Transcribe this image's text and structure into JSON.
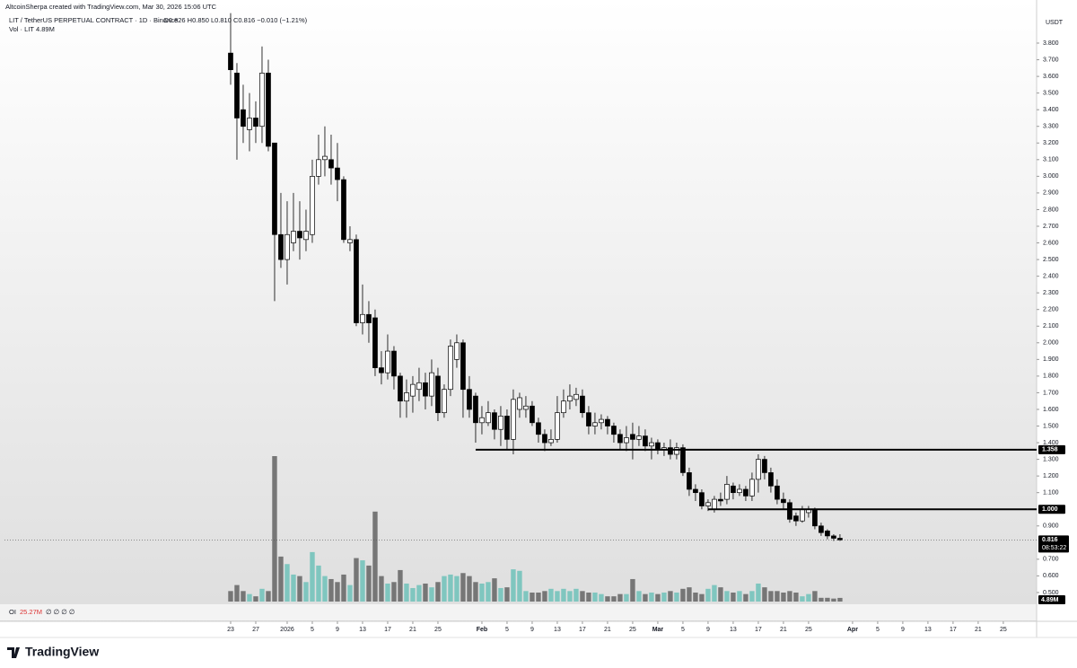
{
  "chart_data": {
    "type": "candlestick",
    "credit": "AltcoinSherpa created with TradingView.com, Mar 30, 2026 15:06 UTC",
    "symbol": "LIT / TetherUS PERPETUAL CONTRACT · 1D · Binance",
    "ohlc_text": "O0.826 H0.850 L0.810 C0.816 −0.010 (−1.21%)",
    "volume_title": "Vol · LIT",
    "volume_text": "4.89M",
    "oi_title": "OI",
    "oi_text": "25.27M",
    "oi_extra": "∅ ∅ ∅ ∅",
    "currency": "USDT",
    "brand": "TradingView",
    "up_color": "#ffffff",
    "down_color": "#000000",
    "wick_color": "#000000",
    "volume_up_color": "#7fc6bf",
    "volume_down_color": "#767676",
    "xlim": [
      -36,
      128.3
    ],
    "ylim": [
      0.435,
      3.978
    ],
    "volume_lim": [
      0,
      200
    ],
    "grid": false,
    "xticks": [
      {
        "value": 0,
        "label": "23"
      },
      {
        "value": 4,
        "label": "27"
      },
      {
        "value": 9,
        "label": "2026"
      },
      {
        "value": 13,
        "label": "5"
      },
      {
        "value": 17,
        "label": "9"
      },
      {
        "value": 21,
        "label": "13"
      },
      {
        "value": 25,
        "label": "17"
      },
      {
        "value": 29,
        "label": "21"
      },
      {
        "value": 33,
        "label": "25"
      },
      {
        "value": 40,
        "label": "Feb"
      },
      {
        "value": 44,
        "label": "5"
      },
      {
        "value": 48,
        "label": "9"
      },
      {
        "value": 52,
        "label": "13"
      },
      {
        "value": 56,
        "label": "17"
      },
      {
        "value": 60,
        "label": "21"
      },
      {
        "value": 64,
        "label": "25"
      },
      {
        "value": 68,
        "label": "Mar"
      },
      {
        "value": 72,
        "label": "5"
      },
      {
        "value": 76,
        "label": "9"
      },
      {
        "value": 80,
        "label": "13"
      },
      {
        "value": 84,
        "label": "17"
      },
      {
        "value": 88,
        "label": "21"
      },
      {
        "value": 92,
        "label": "25"
      },
      {
        "value": 99,
        "label": "Apr"
      },
      {
        "value": 103,
        "label": "5"
      },
      {
        "value": 107,
        "label": "9"
      },
      {
        "value": 111,
        "label": "13"
      },
      {
        "value": 115,
        "label": "17"
      },
      {
        "value": 119,
        "label": "21"
      },
      {
        "value": 123,
        "label": "25"
      }
    ],
    "yticks": [
      {
        "value": 3.8,
        "label": "3.800"
      },
      {
        "value": 3.7,
        "label": "3.700"
      },
      {
        "value": 3.6,
        "label": "3.600"
      },
      {
        "value": 3.5,
        "label": "3.500"
      },
      {
        "value": 3.4,
        "label": "3.400"
      },
      {
        "value": 3.3,
        "label": "3.300"
      },
      {
        "value": 3.2,
        "label": "3.200"
      },
      {
        "value": 3.1,
        "label": "3.100"
      },
      {
        "value": 3.0,
        "label": "3.000"
      },
      {
        "value": 2.9,
        "label": "2.900"
      },
      {
        "value": 2.8,
        "label": "2.800"
      },
      {
        "value": 2.7,
        "label": "2.700"
      },
      {
        "value": 2.6,
        "label": "2.600"
      },
      {
        "value": 2.5,
        "label": "2.500"
      },
      {
        "value": 2.4,
        "label": "2.400"
      },
      {
        "value": 2.3,
        "label": "2.300"
      },
      {
        "value": 2.2,
        "label": "2.200"
      },
      {
        "value": 2.1,
        "label": "2.100"
      },
      {
        "value": 2.0,
        "label": "2.000"
      },
      {
        "value": 1.9,
        "label": "1.900"
      },
      {
        "value": 1.8,
        "label": "1.800"
      },
      {
        "value": 1.7,
        "label": "1.700"
      },
      {
        "value": 1.6,
        "label": "1.600"
      },
      {
        "value": 1.5,
        "label": "1.500"
      },
      {
        "value": 1.4,
        "label": "1.400"
      },
      {
        "value": 1.3,
        "label": "1.300"
      },
      {
        "value": 1.2,
        "label": "1.200"
      },
      {
        "value": 1.1,
        "label": "1.100"
      },
      {
        "value": 0.9,
        "label": "0.900"
      },
      {
        "value": 0.7,
        "label": "0.700"
      },
      {
        "value": 0.6,
        "label": "0.600"
      },
      {
        "value": 0.5,
        "label": "0.500"
      }
    ],
    "levels": [
      {
        "value": 1.358,
        "label": "1.358",
        "start": 39
      },
      {
        "value": 1.0,
        "label": "1.000",
        "start": 76
      }
    ],
    "last": {
      "value": 0.816,
      "label": "0.816",
      "countdown": "08:53:22"
    },
    "open": [
      3.74,
      3.62,
      3.4,
      3.28,
      3.35,
      3.3,
      3.62,
      3.2,
      2.65,
      2.5,
      2.6,
      2.67,
      2.62,
      2.65,
      3.0,
      3.1,
      3.1,
      3.05,
      2.98,
      2.6,
      2.62,
      2.12,
      2.17,
      2.15,
      1.85,
      1.82,
      1.95,
      1.8,
      1.65,
      1.68,
      1.72,
      1.76,
      1.68,
      1.8,
      1.58,
      1.72,
      1.9,
      2.0,
      1.72,
      1.68,
      1.52,
      1.52,
      1.58,
      1.48,
      1.56,
      1.42,
      1.6,
      1.6,
      1.62,
      1.52,
      1.45,
      1.4,
      1.42,
      1.58,
      1.65,
      1.66,
      1.68,
      1.58,
      1.5,
      1.52,
      1.54,
      1.5,
      1.45,
      1.4,
      1.45,
      1.42,
      1.44,
      1.38,
      1.4,
      1.36,
      1.37,
      1.33,
      1.37,
      1.22,
      1.12,
      1.1,
      1.02,
      1.0,
      1.06,
      1.06,
      1.14,
      1.1,
      1.12,
      1.08,
      1.18,
      1.3,
      1.22,
      1.14,
      1.06,
      1.04,
      0.96,
      0.93,
      0.98,
      1.0,
      0.9,
      0.87,
      0.84,
      0.826
    ],
    "high": [
      3.98,
      3.68,
      3.55,
      3.5,
      3.45,
      3.78,
      3.7,
      3.2,
      2.9,
      2.85,
      2.9,
      2.85,
      2.8,
      3.1,
      3.25,
      3.3,
      3.25,
      3.2,
      3.0,
      2.7,
      2.65,
      2.35,
      2.25,
      2.2,
      1.95,
      2.05,
      1.98,
      1.82,
      1.78,
      1.8,
      1.85,
      1.82,
      1.9,
      1.85,
      1.75,
      2.02,
      2.05,
      2.02,
      1.8,
      1.7,
      1.62,
      1.65,
      1.6,
      1.62,
      1.6,
      1.72,
      1.7,
      1.68,
      1.65,
      1.55,
      1.48,
      1.48,
      1.68,
      1.72,
      1.75,
      1.73,
      1.72,
      1.62,
      1.58,
      1.57,
      1.56,
      1.52,
      1.48,
      1.5,
      1.52,
      1.5,
      1.48,
      1.43,
      1.42,
      1.4,
      1.42,
      1.4,
      1.39,
      1.25,
      1.15,
      1.12,
      1.06,
      1.08,
      1.1,
      1.2,
      1.16,
      1.15,
      1.14,
      1.22,
      1.33,
      1.32,
      1.25,
      1.18,
      1.1,
      1.06,
      0.98,
      1.02,
      1.02,
      1.01,
      0.92,
      0.88,
      0.85,
      0.85
    ],
    "low": [
      3.55,
      3.1,
      3.2,
      3.15,
      3.2,
      3.2,
      3.15,
      2.25,
      2.45,
      2.35,
      2.55,
      2.5,
      2.55,
      2.6,
      2.95,
      3.0,
      2.95,
      2.85,
      2.6,
      2.55,
      2.1,
      2.05,
      2.0,
      1.8,
      1.75,
      1.78,
      1.72,
      1.55,
      1.55,
      1.58,
      1.65,
      1.6,
      1.62,
      1.53,
      1.55,
      1.68,
      1.85,
      1.55,
      1.55,
      1.4,
      1.45,
      1.5,
      1.42,
      1.38,
      1.36,
      1.33,
      1.55,
      1.55,
      1.5,
      1.4,
      1.35,
      1.38,
      1.4,
      1.55,
      1.6,
      1.62,
      1.55,
      1.45,
      1.45,
      1.48,
      1.45,
      1.4,
      1.36,
      1.35,
      1.3,
      1.38,
      1.35,
      1.3,
      1.33,
      1.32,
      1.3,
      1.3,
      1.2,
      1.08,
      1.05,
      1.0,
      0.99,
      0.98,
      1.02,
      1.03,
      1.06,
      1.08,
      1.05,
      1.05,
      1.1,
      1.18,
      1.1,
      1.03,
      1.0,
      0.92,
      0.9,
      0.92,
      0.95,
      0.88,
      0.84,
      0.82,
      0.81,
      0.81
    ],
    "close": [
      3.64,
      3.35,
      3.3,
      3.35,
      3.3,
      3.62,
      3.18,
      2.65,
      2.5,
      2.65,
      2.67,
      2.63,
      2.67,
      3.0,
      3.1,
      3.12,
      3.05,
      2.98,
      2.62,
      2.62,
      2.12,
      2.17,
      2.12,
      1.85,
      1.82,
      1.95,
      1.8,
      1.65,
      1.7,
      1.75,
      1.76,
      1.68,
      1.82,
      1.58,
      1.72,
      1.98,
      2.0,
      1.72,
      1.6,
      1.52,
      1.55,
      1.58,
      1.48,
      1.56,
      1.42,
      1.66,
      1.67,
      1.62,
      1.52,
      1.45,
      1.4,
      1.42,
      1.58,
      1.65,
      1.68,
      1.69,
      1.58,
      1.5,
      1.52,
      1.54,
      1.5,
      1.45,
      1.4,
      1.43,
      1.42,
      1.44,
      1.38,
      1.4,
      1.36,
      1.37,
      1.33,
      1.37,
      1.22,
      1.12,
      1.1,
      1.02,
      1.04,
      1.06,
      1.05,
      1.15,
      1.1,
      1.12,
      1.08,
      1.18,
      1.3,
      1.22,
      1.14,
      1.06,
      1.04,
      0.94,
      0.93,
      1.0,
      1.0,
      0.9,
      0.86,
      0.84,
      0.826,
      0.816
    ],
    "volume": [
      14,
      22,
      14,
      10,
      7,
      17,
      14,
      194,
      60,
      50,
      36,
      34,
      26,
      66,
      48,
      34,
      30,
      26,
      36,
      22,
      58,
      55,
      48,
      120,
      34,
      24,
      26,
      42,
      24,
      18,
      22,
      24,
      19,
      26,
      34,
      36,
      34,
      38,
      34,
      26,
      24,
      26,
      31,
      18,
      19,
      43,
      41,
      14,
      12,
      12,
      14,
      17,
      14,
      17,
      14,
      17,
      14,
      12,
      12,
      10,
      7,
      7,
      10,
      10,
      30,
      14,
      10,
      12,
      10,
      12,
      14,
      12,
      17,
      19,
      12,
      10,
      17,
      22,
      19,
      14,
      12,
      14,
      10,
      14,
      24,
      19,
      14,
      14,
      12,
      14,
      12,
      7,
      10,
      14,
      5,
      5,
      4,
      4.89
    ]
  }
}
